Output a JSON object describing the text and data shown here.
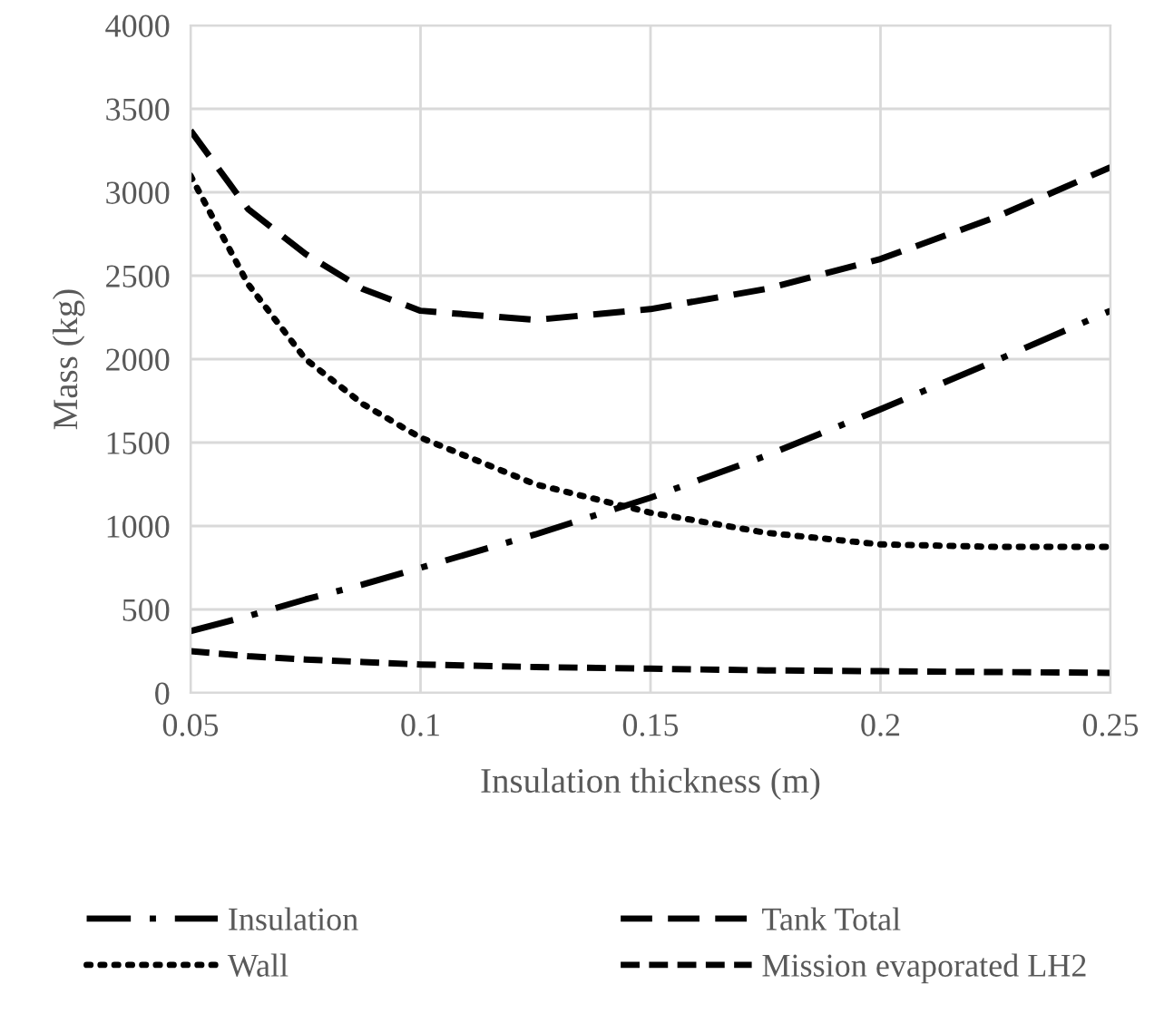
{
  "chart_data": {
    "type": "line",
    "xlabel": "Insulation thickness (m)",
    "ylabel": "Mass (kg)",
    "x": [
      0.05,
      0.0625,
      0.075,
      0.0875,
      0.1,
      0.125,
      0.15,
      0.175,
      0.2,
      0.225,
      0.25
    ],
    "series": [
      {
        "name": "Insulation",
        "color": "#000000",
        "line_style": "dashdot",
        "values": [
          370,
          460,
          560,
          650,
          750,
          950,
          1170,
          1420,
          1700,
          1990,
          2290
        ]
      },
      {
        "name": "Wall",
        "color": "#000000",
        "line_style": "dotted",
        "values": [
          3100,
          2450,
          2000,
          1730,
          1530,
          1250,
          1080,
          960,
          890,
          875,
          875
        ]
      },
      {
        "name": "Tank Total",
        "color": "#000000",
        "line_style": "longdash",
        "values": [
          3370,
          2900,
          2630,
          2420,
          2290,
          2235,
          2300,
          2420,
          2600,
          2850,
          3150
        ]
      },
      {
        "name": "Mission evaporated LH2",
        "color": "#000000",
        "line_style": "dashed",
        "values": [
          250,
          220,
          200,
          185,
          170,
          155,
          145,
          135,
          130,
          125,
          120
        ]
      }
    ],
    "xlim": [
      0.05,
      0.25
    ],
    "xticks": [
      0.05,
      0.1,
      0.15,
      0.2,
      0.25
    ],
    "ylim": [
      0,
      4000
    ],
    "yticks": [
      0,
      500,
      1000,
      1500,
      2000,
      2500,
      3000,
      3500,
      4000
    ],
    "grid": true,
    "legend": "bottom"
  }
}
